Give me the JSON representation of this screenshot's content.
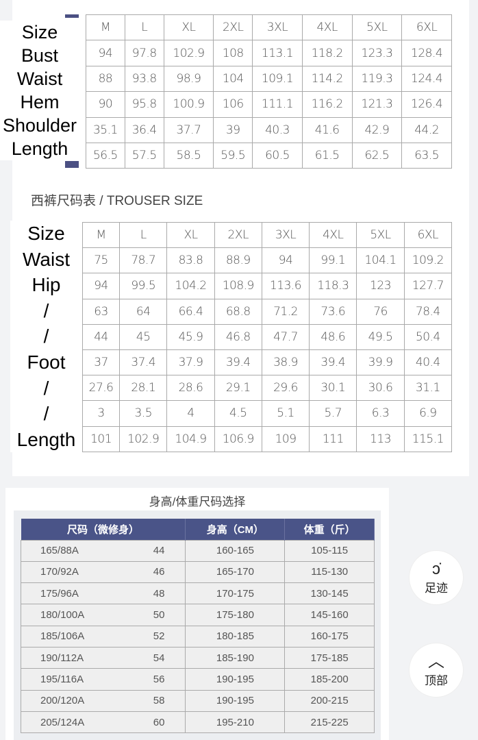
{
  "top_table": {
    "row_labels": [
      "Size",
      "Bust",
      "Waist",
      "Hem",
      "Shoulder",
      "Length"
    ],
    "rows": [
      [
        "M",
        "L",
        "XL",
        "2XL",
        "3XL",
        "4XL",
        "5XL",
        "6XL"
      ],
      [
        "94",
        "97.8",
        "102.9",
        "108",
        "113.1",
        "118.2",
        "123.3",
        "128.4"
      ],
      [
        "88",
        "93.8",
        "98.9",
        "104",
        "109.1",
        "114.2",
        "119.3",
        "124.4"
      ],
      [
        "90",
        "95.8",
        "100.9",
        "106",
        "111.1",
        "116.2",
        "121.3",
        "126.4"
      ],
      [
        "35.1",
        "36.4",
        "37.7",
        "39",
        "40.3",
        "41.6",
        "42.9",
        "44.2"
      ],
      [
        "56.5",
        "57.5",
        "58.5",
        "59.5",
        "60.5",
        "61.5",
        "62.5",
        "63.5"
      ]
    ]
  },
  "trouser": {
    "title": "西裤尺码表 / TROUSER SIZE",
    "row_labels": [
      "Size",
      "Waist",
      "Hip",
      "/",
      "/",
      "Foot",
      "/",
      "/",
      "Length"
    ],
    "rows": [
      [
        "M",
        "L",
        "XL",
        "2XL",
        "3XL",
        "4XL",
        "5XL",
        "6XL"
      ],
      [
        "75",
        "78.7",
        "83.8",
        "88.9",
        "94",
        "99.1",
        "104.1",
        "109.2"
      ],
      [
        "94",
        "99.5",
        "104.2",
        "108.9",
        "113.6",
        "118.3",
        "123",
        "127.7"
      ],
      [
        "63",
        "64",
        "66.4",
        "68.8",
        "71.2",
        "73.6",
        "76",
        "78.4"
      ],
      [
        "44",
        "45",
        "45.9",
        "46.8",
        "47.7",
        "48.6",
        "49.5",
        "50.4"
      ],
      [
        "37",
        "37.4",
        "37.9",
        "39.4",
        "38.9",
        "39.4",
        "39.9",
        "40.4"
      ],
      [
        "27.6",
        "28.1",
        "28.6",
        "29.1",
        "29.6",
        "30.1",
        "30.6",
        "31.1"
      ],
      [
        "3",
        "3.5",
        "4",
        "4.5",
        "5.1",
        "5.7",
        "6.3",
        "6.9"
      ],
      [
        "101",
        "102.9",
        "104.9",
        "106.9",
        "109",
        "111",
        "113",
        "115.1"
      ]
    ]
  },
  "height_weight": {
    "title": "身高/体重尺码选择",
    "headers": [
      "尺码（微修身）",
      "身高（CM）",
      "体重（斤）"
    ],
    "rows": [
      [
        "165/88A",
        "44",
        "160-165",
        "105-115"
      ],
      [
        "170/92A",
        "46",
        "165-170",
        "115-130"
      ],
      [
        "175/96A",
        "48",
        "170-175",
        "130-145"
      ],
      [
        "180/100A",
        "50",
        "175-180",
        "145-160"
      ],
      [
        "185/106A",
        "52",
        "180-185",
        "160-175"
      ],
      [
        "190/112A",
        "54",
        "185-190",
        "175-185"
      ],
      [
        "195/116A",
        "56",
        "190-195",
        "185-200"
      ],
      [
        "200/120A",
        "58",
        "190-195",
        "200-215"
      ],
      [
        "205/124A",
        "60",
        "195-210",
        "215-225"
      ]
    ]
  },
  "fab": {
    "footprint": {
      "label": "足迹",
      "icon": "footprint-icon"
    },
    "top": {
      "label": "顶部",
      "icon": "chevron-up-icon"
    }
  },
  "colors": {
    "header_blue": "#4a5488",
    "accent_bar": "#4b5083"
  }
}
